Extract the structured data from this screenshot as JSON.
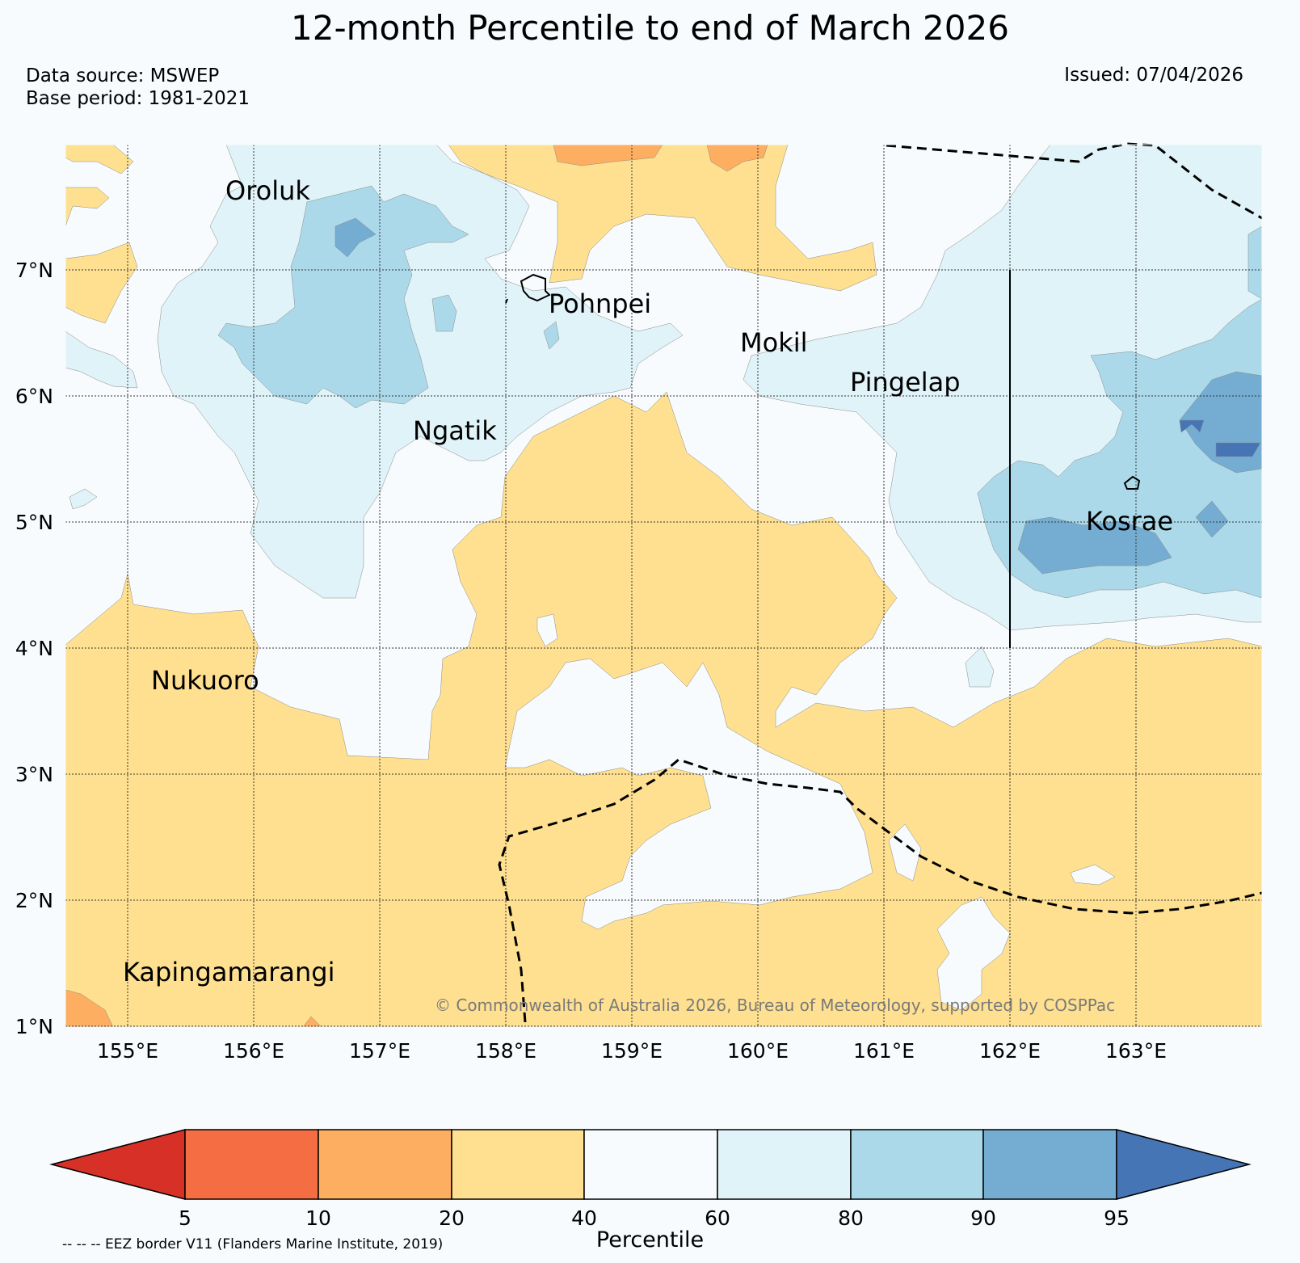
{
  "header": {
    "title": "12-month Percentile to end of March 2026",
    "data_source": "Data source: MSWEP",
    "base_period": "Base period: 1981-2021",
    "issued": "Issued: 07/04/2026"
  },
  "map": {
    "lon_ticks": [
      "155°E",
      "156°E",
      "157°E",
      "158°E",
      "159°E",
      "160°E",
      "161°E",
      "162°E",
      "163°E"
    ],
    "lat_ticks": [
      "7°N",
      "6°N",
      "5°N",
      "4°N",
      "3°N",
      "2°N",
      "1°N"
    ],
    "places": [
      "Oroluk",
      "Pohnpei",
      "Mokil",
      "Pingelap",
      "Ngatik",
      "Kosrae",
      "Nukuoro",
      "Kapingamarangi"
    ],
    "copyright": "© Commonwealth of Australia 2026, Bureau of Meteorology, supported by COSPPac"
  },
  "colorbar": {
    "title": "Percentile",
    "ticks": [
      "5",
      "10",
      "20",
      "40",
      "60",
      "80",
      "90",
      "95"
    ],
    "colors": {
      "below5": "#d73027",
      "p5_10": "#f46d43",
      "p10_20": "#fdae61",
      "p20_40": "#fee090",
      "p40_60": "#f7fbfd",
      "p60_80": "#e0f3f8",
      "p80_90": "#abd9e9",
      "p90_95": "#74add1",
      "above95": "#4575b4"
    }
  },
  "legend_note": "-- -- -- EEZ border V11 (Flanders Marine Institute, 2019)"
}
